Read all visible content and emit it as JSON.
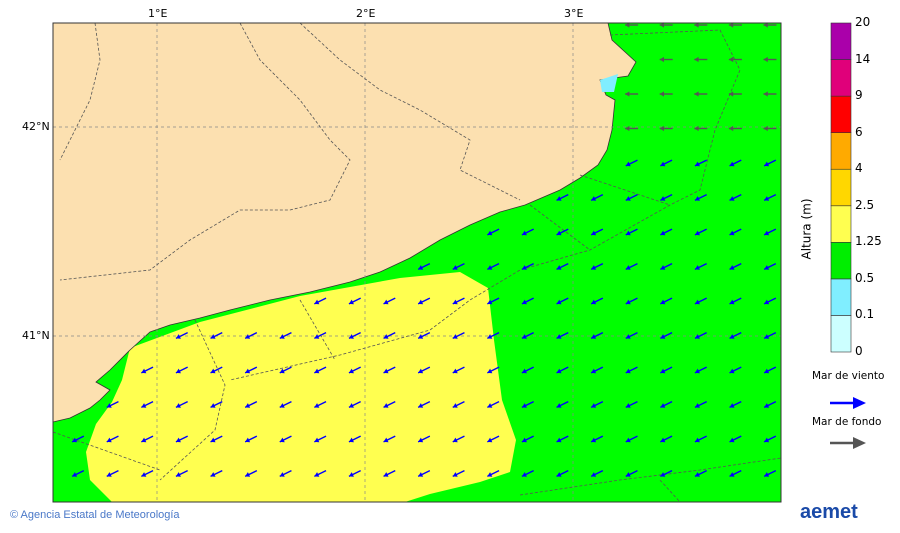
{
  "map": {
    "lon_ticks": [
      "1°E",
      "2°E",
      "3°E"
    ],
    "lat_ticks": [
      "42°N",
      "41°N"
    ],
    "lon_range": [
      0.5,
      4.0
    ],
    "lat_range": [
      40.2,
      42.5
    ],
    "colors": {
      "land": "#fce0b0",
      "sea_green": "#00ff00",
      "sea_yellow": "#ffff50",
      "coast": "#333333",
      "wind_arrow": "#0000ff",
      "swell_arrow": "#555555"
    }
  },
  "colorbar": {
    "title": "Altura (m)",
    "levels": [
      "0",
      "0.1",
      "0.5",
      "1.25",
      "2.5",
      "4",
      "6",
      "9",
      "14",
      "20"
    ],
    "colors": [
      "#ccffff",
      "#80eeff",
      "#00ee00",
      "#ffff50",
      "#ffd700",
      "#ffaa00",
      "#ff0000",
      "#e0007a",
      "#aa00aa"
    ]
  },
  "legend": {
    "wind_sea": "Mar de viento",
    "swell": "Mar de fondo"
  },
  "footer": {
    "credit": "© Agencia Estatal de Meteorología",
    "logo": "aemet"
  }
}
